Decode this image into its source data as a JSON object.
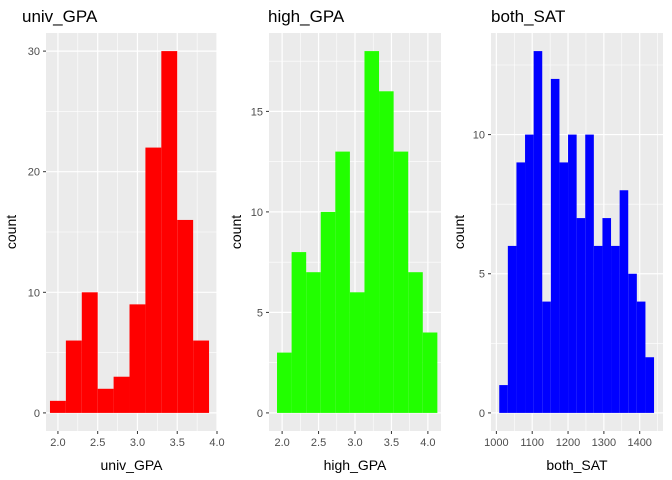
{
  "chart_data": [
    {
      "type": "bar",
      "title": "univ_GPA",
      "xlabel": "univ_GPA",
      "ylabel": "count",
      "color": "#ff0000",
      "xlim": [
        1.85,
        4.0
      ],
      "ylim": [
        -1.5,
        31.5
      ],
      "xticks": [
        2.0,
        2.5,
        3.0,
        3.5,
        4.0
      ],
      "xtick_labels": [
        "2.0",
        "2.5",
        "3.0",
        "3.5",
        "4.0"
      ],
      "yticks": [
        0,
        10,
        20,
        30
      ],
      "ytick_labels": [
        "0",
        "10",
        "20",
        "30"
      ],
      "bins": [
        {
          "x0": 1.9,
          "x1": 2.1,
          "count": 1
        },
        {
          "x0": 2.1,
          "x1": 2.3,
          "count": 6
        },
        {
          "x0": 2.3,
          "x1": 2.5,
          "count": 10
        },
        {
          "x0": 2.5,
          "x1": 2.7,
          "count": 2
        },
        {
          "x0": 2.7,
          "x1": 2.9,
          "count": 3
        },
        {
          "x0": 2.9,
          "x1": 3.1,
          "count": 9
        },
        {
          "x0": 3.1,
          "x1": 3.3,
          "count": 22
        },
        {
          "x0": 3.3,
          "x1": 3.5,
          "count": 30
        },
        {
          "x0": 3.5,
          "x1": 3.7,
          "count": 16
        },
        {
          "x0": 3.7,
          "x1": 3.9,
          "count": 6
        }
      ],
      "grid": true
    },
    {
      "type": "bar",
      "title": "high_GPA",
      "xlabel": "high_GPA",
      "ylabel": "count",
      "color": "#22ff00",
      "xlim": [
        1.82,
        4.18
      ],
      "ylim": [
        -0.9,
        18.9
      ],
      "xticks": [
        2.0,
        2.5,
        3.0,
        3.5,
        4.0
      ],
      "xtick_labels": [
        "2.0",
        "2.5",
        "3.0",
        "3.5",
        "4.0"
      ],
      "yticks": [
        0,
        5,
        10,
        15
      ],
      "ytick_labels": [
        "0",
        "5",
        "10",
        "15"
      ],
      "bins": [
        {
          "x0": 1.93,
          "x1": 2.13,
          "count": 3
        },
        {
          "x0": 2.13,
          "x1": 2.33,
          "count": 8
        },
        {
          "x0": 2.33,
          "x1": 2.53,
          "count": 7
        },
        {
          "x0": 2.53,
          "x1": 2.73,
          "count": 10
        },
        {
          "x0": 2.73,
          "x1": 2.93,
          "count": 13
        },
        {
          "x0": 2.93,
          "x1": 3.13,
          "count": 6
        },
        {
          "x0": 3.13,
          "x1": 3.33,
          "count": 18
        },
        {
          "x0": 3.33,
          "x1": 3.53,
          "count": 16
        },
        {
          "x0": 3.53,
          "x1": 3.73,
          "count": 13
        },
        {
          "x0": 3.73,
          "x1": 3.93,
          "count": 7
        },
        {
          "x0": 3.93,
          "x1": 4.13,
          "count": 4
        }
      ],
      "grid": true
    },
    {
      "type": "bar",
      "title": "both_SAT",
      "xlabel": "both_SAT",
      "ylabel": "count",
      "color": "#0000ff",
      "xlim": [
        985,
        1465
      ],
      "ylim": [
        -0.65,
        13.65
      ],
      "xticks": [
        1000,
        1100,
        1200,
        1300,
        1400
      ],
      "xtick_labels": [
        "1000",
        "1100",
        "1200",
        "1300",
        "1400"
      ],
      "yticks": [
        0,
        5,
        10
      ],
      "ytick_labels": [
        "0",
        "5",
        "10"
      ],
      "bins": [
        {
          "x0": 1008,
          "x1": 1032,
          "count": 1
        },
        {
          "x0": 1032,
          "x1": 1056,
          "count": 6
        },
        {
          "x0": 1056,
          "x1": 1080,
          "count": 9
        },
        {
          "x0": 1080,
          "x1": 1104,
          "count": 10
        },
        {
          "x0": 1104,
          "x1": 1128,
          "count": 13
        },
        {
          "x0": 1128,
          "x1": 1152,
          "count": 4
        },
        {
          "x0": 1152,
          "x1": 1176,
          "count": 12
        },
        {
          "x0": 1176,
          "x1": 1200,
          "count": 9
        },
        {
          "x0": 1200,
          "x1": 1224,
          "count": 10
        },
        {
          "x0": 1224,
          "x1": 1248,
          "count": 7
        },
        {
          "x0": 1248,
          "x1": 1272,
          "count": 10
        },
        {
          "x0": 1272,
          "x1": 1296,
          "count": 6
        },
        {
          "x0": 1296,
          "x1": 1320,
          "count": 7
        },
        {
          "x0": 1320,
          "x1": 1344,
          "count": 6
        },
        {
          "x0": 1344,
          "x1": 1368,
          "count": 8
        },
        {
          "x0": 1368,
          "x1": 1392,
          "count": 5
        },
        {
          "x0": 1392,
          "x1": 1416,
          "count": 4
        },
        {
          "x0": 1416,
          "x1": 1440,
          "count": 2
        }
      ],
      "grid": true
    }
  ]
}
